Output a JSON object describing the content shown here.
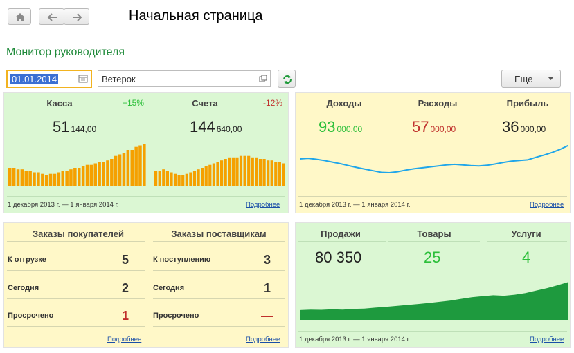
{
  "header": {
    "title": "Начальная страница"
  },
  "section": {
    "title": "Монитор руководителя"
  },
  "filters": {
    "date": "01.01.2014",
    "organization": "Ветерок",
    "more_label": "Еще"
  },
  "colors": {
    "green_text": "#2cbf3a",
    "red_text": "#c0302c",
    "bar_orange": "#f5a000",
    "line_blue": "#1fa6ea",
    "area_green": "#1e9a3e",
    "panel_yellow": "#fff8c8",
    "panel_green": "#dbf7d3"
  },
  "cash_panel": {
    "kassa": {
      "label": "Касса",
      "change": "+15%",
      "value_main": "51",
      "value_fraction": "144,00"
    },
    "scheta": {
      "label": "Счета",
      "change": "-12%",
      "value_main": "144",
      "value_fraction": "640,00"
    },
    "period": "1 декабря 2013 г. — 1 января 2014 г.",
    "more": "Подробнее"
  },
  "income_panel": {
    "dohody": {
      "label": "Доходы",
      "value_main": "93",
      "value_fraction": "000,00"
    },
    "rashody": {
      "label": "Расходы",
      "value_main": "57",
      "value_fraction": "000,00"
    },
    "pribyl": {
      "label": "Прибыль",
      "value_main": "36",
      "value_fraction": "000,00"
    },
    "period": "1 декабря 2013 г. — 1 января 2014 г.",
    "more": "Подробнее"
  },
  "orders_panel": {
    "customers": {
      "label": "Заказы покупателей",
      "rows": [
        {
          "label": "К отгрузке",
          "value": "5"
        },
        {
          "label": "Сегодня",
          "value": "2"
        },
        {
          "label": "Просрочено",
          "value": "1"
        }
      ],
      "more": "Подробнее"
    },
    "suppliers": {
      "label": "Заказы поставщикам",
      "rows": [
        {
          "label": "К поступлению",
          "value": "3"
        },
        {
          "label": "Сегодня",
          "value": "1"
        },
        {
          "label": "Просрочено",
          "value": "—"
        }
      ],
      "more": "Подробнее"
    }
  },
  "sales_panel": {
    "prodazhi": {
      "label": "Продажи",
      "value": "80 350"
    },
    "tovary": {
      "label": "Товары",
      "value": "25"
    },
    "uslugi": {
      "label": "Услуги",
      "value": "4"
    },
    "period": "1 декабря 2013 г. — 1 января 2014 г.",
    "more": "Подробнее"
  },
  "chart_data": [
    {
      "type": "bar",
      "series": [
        {
          "values": [
            6,
            6,
            5.5,
            5.5,
            5,
            5,
            4.5,
            4.5,
            4,
            3.5,
            4,
            4,
            4.5,
            5,
            5,
            5.5,
            6,
            6,
            6.5,
            7,
            7,
            7.5,
            8,
            8,
            8.5,
            9,
            10,
            10.5,
            11,
            12,
            12,
            13,
            13.5,
            14
          ]
        }
      ]
    },
    {
      "type": "bar",
      "series": [
        {
          "values": [
            5,
            5,
            5.5,
            5,
            4.5,
            4,
            3.5,
            3.5,
            4,
            4.5,
            5,
            5.5,
            6,
            6.5,
            7,
            7.5,
            8,
            8.5,
            9,
            9.5,
            9.5,
            9.5,
            10,
            10,
            10,
            9.5,
            9.5,
            9,
            9,
            8.5,
            8.5,
            8,
            8,
            7.5
          ]
        }
      ]
    },
    {
      "type": "line",
      "series": [
        {
          "values": [
            8.4,
            8.6,
            8.3,
            7.9,
            7.4,
            6.9,
            6.3,
            5.7,
            5.2,
            4.7,
            4.2,
            4.1,
            4.4,
            4.9,
            5.3,
            5.6,
            5.9,
            6.2,
            6.5,
            6.7,
            6.5,
            6.3,
            6.2,
            6.4,
            6.8,
            7.3,
            7.7,
            7.9,
            8.1,
            8.9,
            9.6,
            10.4,
            11.4,
            12.6
          ]
        }
      ]
    },
    {
      "type": "area",
      "series": [
        {
          "values": [
            4,
            4.2,
            4.1,
            4.3,
            4.2,
            4.5,
            4.6,
            5,
            5.3,
            5.7,
            6.1,
            6.5,
            6.9,
            7.4,
            7.9,
            8.6,
            9.3,
            9.7,
            10.1,
            9.9,
            10.3,
            11,
            12,
            13,
            14.2,
            15.5
          ]
        }
      ]
    }
  ]
}
